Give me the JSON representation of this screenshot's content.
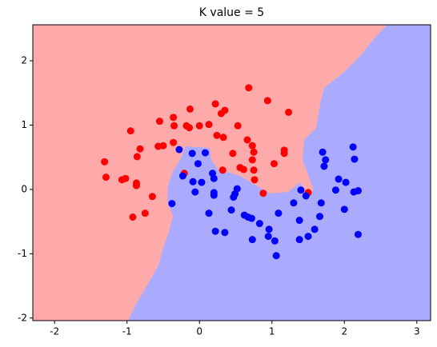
{
  "chart_data": {
    "type": "scatter",
    "title": "K value = 5",
    "xlim": [
      -2.3,
      3.19
    ],
    "ylim": [
      -2.04,
      2.56
    ],
    "xticks": [
      -2,
      -1,
      0,
      1,
      2,
      3
    ],
    "yticks": [
      -2,
      -1,
      0,
      1,
      2
    ],
    "series": [
      {
        "color": "#ff0000",
        "x": [
          0.68,
          0.94,
          -0.13,
          0.22,
          0.35,
          1.23,
          -0.36,
          -0.55,
          -0.95,
          -0.35,
          -0.18,
          -0.14,
          0.0,
          0.13,
          0.3,
          0.53,
          0.24,
          0.33,
          0.66,
          -0.5,
          -0.57,
          -0.36,
          -0.82,
          -0.86,
          0.46,
          0.73,
          0.75,
          0.73,
          1.17,
          1.17,
          0.56,
          0.61,
          0.75,
          0.32,
          1.03,
          -1.31,
          -1.29,
          -1.02,
          -1.07,
          -0.87,
          -0.87,
          -0.21,
          0.76,
          -0.65,
          -0.75,
          -0.92,
          0.88,
          1.5
        ],
        "y": [
          1.58,
          1.38,
          1.25,
          1.33,
          1.23,
          1.2,
          1.12,
          1.06,
          0.91,
          0.99,
          0.99,
          0.96,
          0.99,
          1.01,
          1.18,
          0.99,
          0.84,
          0.81,
          0.77,
          0.68,
          0.67,
          0.73,
          0.63,
          0.51,
          0.56,
          0.68,
          0.58,
          0.46,
          0.61,
          0.56,
          0.34,
          0.31,
          0.3,
          0.3,
          0.4,
          0.43,
          0.19,
          0.17,
          0.15,
          0.06,
          0.1,
          0.25,
          0.15,
          -0.11,
          -0.37,
          -0.43,
          -0.06,
          -0.05
        ]
      },
      {
        "color": "#0000ff",
        "x": [
          -0.28,
          -0.1,
          0.08,
          -0.02,
          -0.23,
          0.18,
          0.2,
          0.03,
          -0.09,
          -0.06,
          0.2,
          0.2,
          0.52,
          0.47,
          0.49,
          -0.38,
          0.44,
          0.13,
          0.62,
          0.67,
          0.72,
          0.83,
          0.22,
          0.35,
          0.73,
          0.96,
          1.04,
          0.95,
          1.09,
          1.3,
          1.38,
          1.4,
          1.47,
          1.38,
          1.5,
          1.59,
          1.06,
          1.68,
          1.66,
          1.7,
          1.74,
          1.72,
          1.88,
          1.92,
          2.02,
          2.0,
          2.12,
          2.14,
          2.13,
          2.19,
          2.19
        ],
        "y": [
          0.62,
          0.56,
          0.57,
          0.4,
          0.21,
          0.25,
          0.17,
          0.11,
          0.12,
          -0.04,
          -0.05,
          -0.09,
          0.01,
          -0.12,
          -0.07,
          -0.22,
          -0.32,
          -0.37,
          -0.4,
          -0.43,
          -0.45,
          -0.53,
          -0.65,
          -0.67,
          -0.78,
          -0.62,
          -0.8,
          -0.73,
          -0.37,
          -0.21,
          -0.48,
          -0.01,
          -0.1,
          -0.78,
          -0.73,
          -0.62,
          -1.03,
          -0.21,
          -0.42,
          0.58,
          0.46,
          0.36,
          -0.01,
          0.16,
          0.11,
          -0.31,
          0.66,
          0.47,
          -0.04,
          -0.02,
          -0.7
        ]
      }
    ]
  }
}
